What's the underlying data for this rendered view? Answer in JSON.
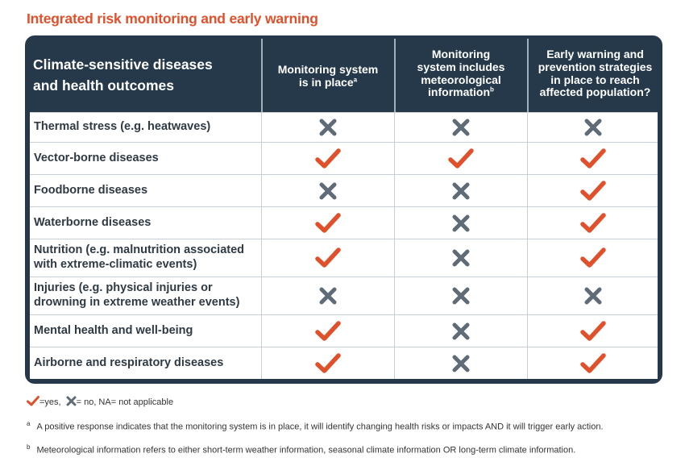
{
  "title": "Integrated risk monitoring and early warning",
  "header": {
    "col0": [
      "Climate-sensitive diseases",
      "and health outcomes"
    ],
    "col1": [
      "Monitoring system",
      "is in place"
    ],
    "col1_sup": "a",
    "col2": [
      "Monitoring",
      "system includes",
      "meteorological",
      "information"
    ],
    "col2_sup": "b",
    "col3": [
      "Early warning and",
      "prevention strategies",
      "in place to reach",
      "affected population?"
    ]
  },
  "rows": [
    {
      "label": [
        "Thermal stress (e.g. heatwaves)"
      ],
      "marks": [
        "no",
        "no",
        "no"
      ]
    },
    {
      "label": [
        "Vector-borne diseases"
      ],
      "marks": [
        "yes",
        "yes",
        "yes"
      ]
    },
    {
      "label": [
        "Foodborne diseases"
      ],
      "marks": [
        "no",
        "no",
        "yes"
      ]
    },
    {
      "label": [
        "Waterborne diseases"
      ],
      "marks": [
        "yes",
        "no",
        "yes"
      ]
    },
    {
      "label": [
        "Nutrition (e.g. malnutrition associated",
        "with extreme-climatic events)"
      ],
      "marks": [
        "yes",
        "no",
        "yes"
      ]
    },
    {
      "label": [
        "Injuries (e.g. physical injuries or",
        "drowning in extreme weather events)"
      ],
      "marks": [
        "no",
        "no",
        "no"
      ]
    },
    {
      "label": [
        "Mental health and well-being"
      ],
      "marks": [
        "yes",
        "no",
        "yes"
      ]
    },
    {
      "label": [
        "Airborne and respiratory diseases"
      ],
      "marks": [
        "yes",
        "no",
        "yes"
      ]
    }
  ],
  "legend": {
    "yes_text": "=yes,",
    "no_text": "= no, NA= not applicable",
    "yes_icon": "check-icon",
    "no_icon": "cross-icon",
    "yes_color": "#e0502b",
    "no_color": "#5f6b76"
  },
  "notes": [
    {
      "marker": "a",
      "text": "A positive response indicates that the monitoring system is in place, it will identify changing health risks or impacts AND it will trigger early action."
    },
    {
      "marker": "b",
      "text": "Meteorological information refers to either short-term weather information, seasonal climate information OR long-term climate information."
    }
  ]
}
